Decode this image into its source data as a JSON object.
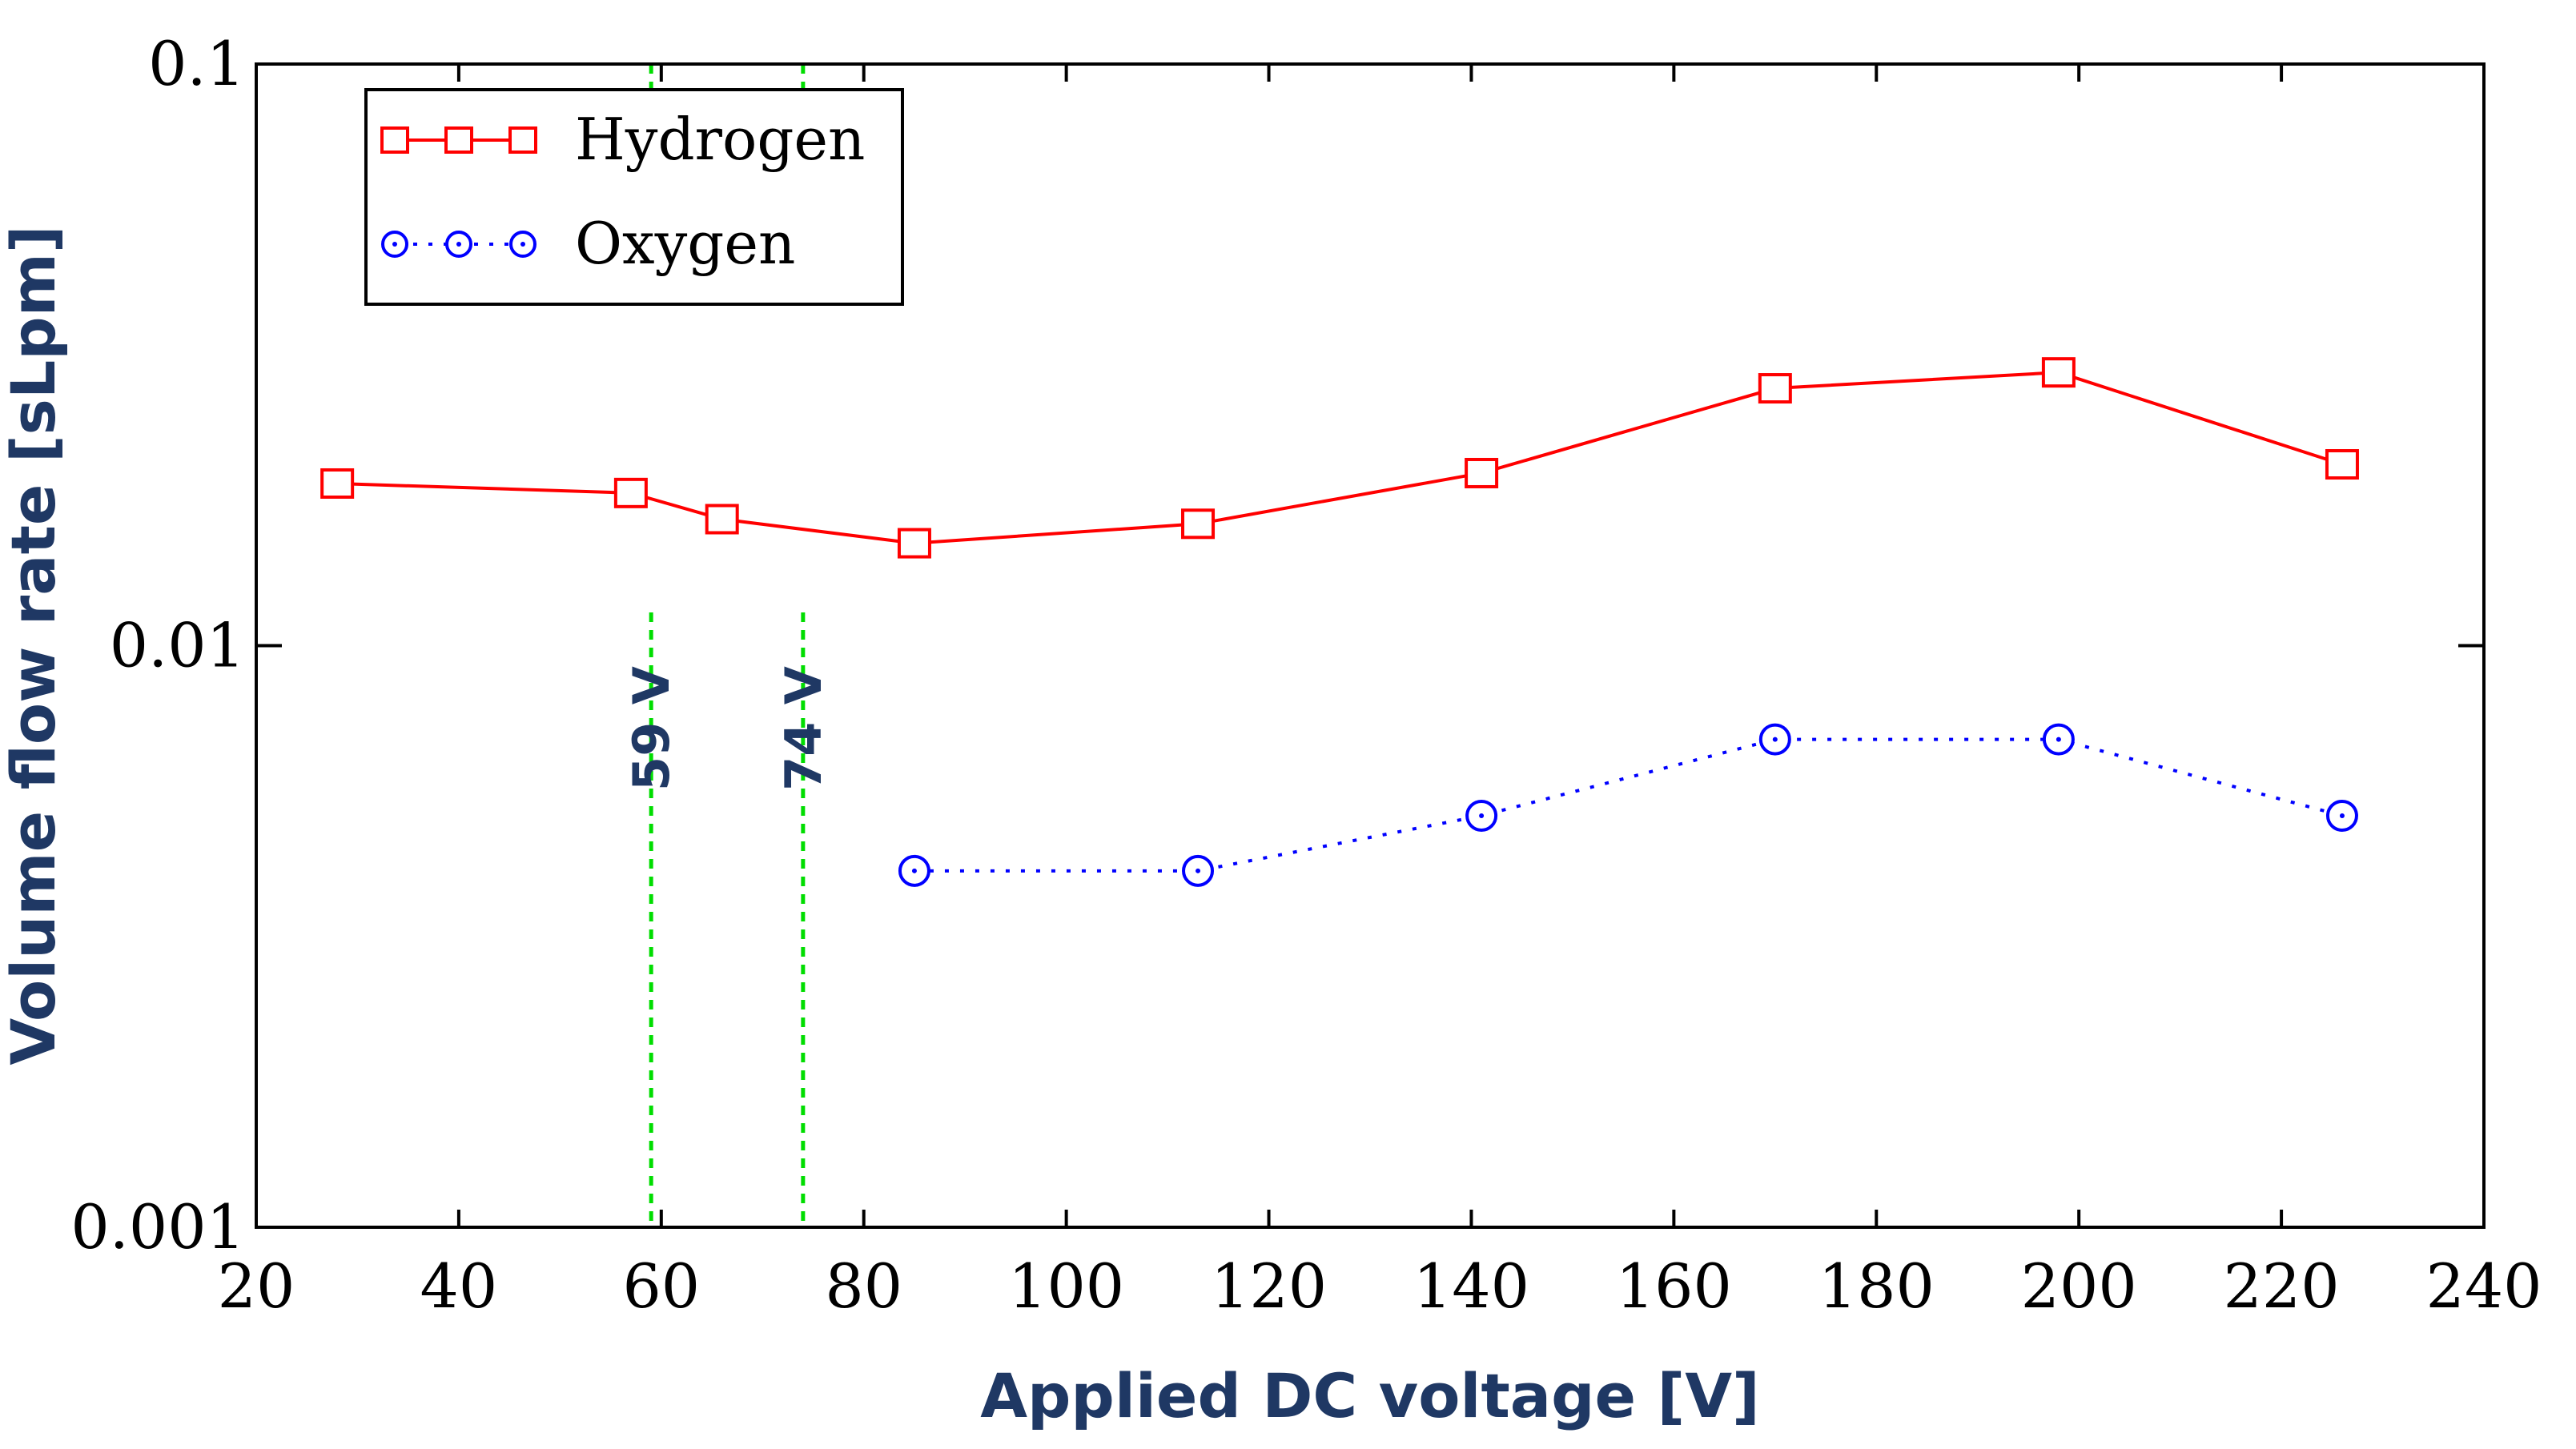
{
  "chart_data": {
    "type": "line",
    "title": "",
    "xlabel": "Applied DC voltage [V]",
    "ylabel": "Volume flow rate [sLpm]",
    "xlim": [
      20,
      240
    ],
    "ylim": [
      0.001,
      0.1
    ],
    "yscale": "log",
    "x_ticks": [
      20,
      40,
      60,
      80,
      100,
      120,
      140,
      160,
      180,
      200,
      220,
      240
    ],
    "y_ticks": [
      0.001,
      0.01,
      0.1
    ],
    "y_tick_labels": [
      "0.001",
      "0.01",
      "0.1"
    ],
    "grid": false,
    "legend_position": "top-left",
    "series": [
      {
        "name": "Hydrogen",
        "color": "#ff0000",
        "marker": "square",
        "line_style": "solid",
        "x": [
          28,
          57,
          66,
          85,
          113,
          141,
          170,
          198,
          226
        ],
        "y": [
          0.019,
          0.0183,
          0.0165,
          0.015,
          0.0162,
          0.0198,
          0.0277,
          0.0295,
          0.0205
        ]
      },
      {
        "name": "Oxygen",
        "color": "#0000ff",
        "marker": "circle",
        "line_style": "dotted",
        "x": [
          85,
          113,
          141,
          170,
          198,
          226
        ],
        "y": [
          0.0041,
          0.0041,
          0.0051,
          0.0069,
          0.0069,
          0.0051
        ]
      }
    ],
    "vertical_lines": [
      {
        "x": 59,
        "label": "59 V",
        "color": "#00dd00"
      },
      {
        "x": 74,
        "label": "74 V",
        "color": "#00dd00"
      }
    ],
    "axis_title_color": "#1f3864"
  }
}
